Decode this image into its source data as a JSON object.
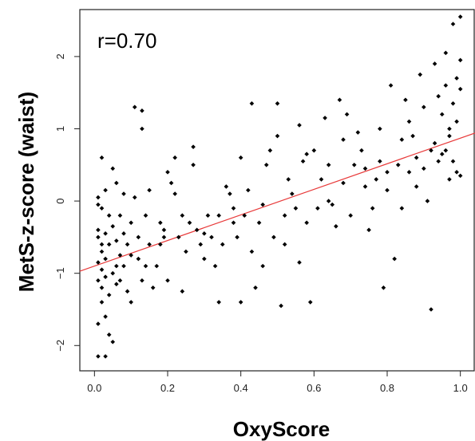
{
  "chart_data": {
    "type": "scatter",
    "title": "",
    "xlabel": "OxyScore",
    "ylabel": "MetS-z-score (waist)",
    "annotation": "r=0.70",
    "xlim": [
      -0.04,
      1.04
    ],
    "ylim": [
      -2.35,
      2.65
    ],
    "xticks": [
      {
        "value": 0.0,
        "label": "0.0"
      },
      {
        "value": 0.2,
        "label": "0.2"
      },
      {
        "value": 0.4,
        "label": "0.4"
      },
      {
        "value": 0.6,
        "label": "0.6"
      },
      {
        "value": 0.8,
        "label": "0.8"
      },
      {
        "value": 1.0,
        "label": "1.0"
      }
    ],
    "yticks": [
      {
        "value": -2,
        "label": "−2"
      },
      {
        "value": -1,
        "label": "−1"
      },
      {
        "value": 0,
        "label": "0"
      },
      {
        "value": 1,
        "label": "1"
      },
      {
        "value": 2,
        "label": "2"
      }
    ],
    "grid": false,
    "colors": {
      "points": "#000000",
      "fit_line": "#e83a3a",
      "plot_bg": "#ffffff",
      "page_bg": "#ffffff"
    },
    "fit_line": {
      "intercept": -0.9,
      "slope": 1.77,
      "x_range": [
        -0.04,
        1.04
      ]
    },
    "points": [
      [
        0.02,
        0.6
      ],
      [
        0.01,
        0.05
      ],
      [
        0.01,
        -0.05
      ],
      [
        0.03,
        0.15
      ],
      [
        0.02,
        -0.1
      ],
      [
        0.04,
        -0.2
      ],
      [
        0.01,
        -0.4
      ],
      [
        0.01,
        -0.5
      ],
      [
        0.02,
        -0.6
      ],
      [
        0.03,
        -0.45
      ],
      [
        0.02,
        -0.7
      ],
      [
        0.01,
        -0.85
      ],
      [
        0.02,
        -0.95
      ],
      [
        0.03,
        -1.05
      ],
      [
        0.01,
        -1.1
      ],
      [
        0.02,
        -1.2
      ],
      [
        0.04,
        -1.3
      ],
      [
        0.02,
        -1.4
      ],
      [
        0.03,
        -1.6
      ],
      [
        0.01,
        -1.7
      ],
      [
        0.04,
        -1.85
      ],
      [
        0.05,
        -1.95
      ],
      [
        0.01,
        -2.15
      ],
      [
        0.03,
        -2.15
      ],
      [
        0.05,
        0.45
      ],
      [
        0.06,
        0.25
      ],
      [
        0.05,
        -0.35
      ],
      [
        0.06,
        -0.55
      ],
      [
        0.07,
        -0.75
      ],
      [
        0.05,
        -1.0
      ],
      [
        0.06,
        -1.15
      ],
      [
        0.07,
        -0.2
      ],
      [
        0.08,
        0.1
      ],
      [
        0.09,
        -0.6
      ],
      [
        0.08,
        -0.9
      ],
      [
        0.09,
        -1.25
      ],
      [
        0.1,
        -1.4
      ],
      [
        0.1,
        -0.3
      ],
      [
        0.11,
        0.05
      ],
      [
        0.11,
        1.3
      ],
      [
        0.13,
        1.25
      ],
      [
        0.13,
        1.0
      ],
      [
        0.12,
        -0.5
      ],
      [
        0.12,
        -0.8
      ],
      [
        0.13,
        -1.1
      ],
      [
        0.14,
        -0.2
      ],
      [
        0.15,
        -0.6
      ],
      [
        0.15,
        0.15
      ],
      [
        0.16,
        -1.2
      ],
      [
        0.17,
        -0.9
      ],
      [
        0.18,
        -0.6
      ],
      [
        0.19,
        -0.4
      ],
      [
        0.19,
        -0.5
      ],
      [
        0.2,
        -1.1
      ],
      [
        0.2,
        0.4
      ],
      [
        0.21,
        0.25
      ],
      [
        0.22,
        0.6
      ],
      [
        0.22,
        0.1
      ],
      [
        0.23,
        -0.5
      ],
      [
        0.24,
        -1.25
      ],
      [
        0.25,
        -0.7
      ],
      [
        0.26,
        -0.3
      ],
      [
        0.27,
        0.75
      ],
      [
        0.27,
        0.5
      ],
      [
        0.28,
        -0.4
      ],
      [
        0.29,
        -0.6
      ],
      [
        0.3,
        -0.8
      ],
      [
        0.31,
        -0.2
      ],
      [
        0.32,
        -0.5
      ],
      [
        0.33,
        -0.9
      ],
      [
        0.34,
        -1.4
      ],
      [
        0.35,
        -0.6
      ],
      [
        0.36,
        0.2
      ],
      [
        0.37,
        0.1
      ],
      [
        0.38,
        -0.3
      ],
      [
        0.39,
        -0.5
      ],
      [
        0.4,
        0.6
      ],
      [
        0.4,
        -1.4
      ],
      [
        0.41,
        -0.2
      ],
      [
        0.42,
        0.15
      ],
      [
        0.43,
        1.35
      ],
      [
        0.43,
        -0.7
      ],
      [
        0.44,
        -1.2
      ],
      [
        0.45,
        -0.3
      ],
      [
        0.46,
        -0.9
      ],
      [
        0.47,
        0.5
      ],
      [
        0.48,
        0.7
      ],
      [
        0.49,
        -0.5
      ],
      [
        0.5,
        1.35
      ],
      [
        0.5,
        0.9
      ],
      [
        0.51,
        -1.45
      ],
      [
        0.52,
        -0.2
      ],
      [
        0.53,
        0.3
      ],
      [
        0.54,
        0.1
      ],
      [
        0.55,
        -0.1
      ],
      [
        0.56,
        1.05
      ],
      [
        0.56,
        -0.85
      ],
      [
        0.57,
        0.55
      ],
      [
        0.58,
        0.65
      ],
      [
        0.59,
        -1.4
      ],
      [
        0.6,
        0.7
      ],
      [
        0.61,
        -0.1
      ],
      [
        0.62,
        0.3
      ],
      [
        0.63,
        1.15
      ],
      [
        0.64,
        0.5
      ],
      [
        0.65,
        -0.05
      ],
      [
        0.66,
        -0.35
      ],
      [
        0.67,
        1.4
      ],
      [
        0.68,
        0.85
      ],
      [
        0.69,
        1.2
      ],
      [
        0.7,
        -0.2
      ],
      [
        0.71,
        0.5
      ],
      [
        0.72,
        0.95
      ],
      [
        0.73,
        0.7
      ],
      [
        0.74,
        0.2
      ],
      [
        0.75,
        -0.4
      ],
      [
        0.76,
        -0.1
      ],
      [
        0.77,
        0.3
      ],
      [
        0.78,
        0.55
      ],
      [
        0.78,
        1.0
      ],
      [
        0.79,
        -1.2
      ],
      [
        0.8,
        0.15
      ],
      [
        0.81,
        1.6
      ],
      [
        0.82,
        -0.8
      ],
      [
        0.83,
        0.5
      ],
      [
        0.84,
        0.85
      ],
      [
        0.85,
        1.4
      ],
      [
        0.86,
        1.1
      ],
      [
        0.87,
        0.9
      ],
      [
        0.88,
        0.6
      ],
      [
        0.89,
        1.75
      ],
      [
        0.9,
        0.45
      ],
      [
        0.9,
        1.3
      ],
      [
        0.91,
        0.0
      ],
      [
        0.92,
        -1.5
      ],
      [
        0.93,
        1.9
      ],
      [
        0.93,
        0.8
      ],
      [
        0.94,
        1.45
      ],
      [
        0.95,
        1.2
      ],
      [
        0.95,
        0.65
      ],
      [
        0.96,
        1.6
      ],
      [
        0.96,
        2.05
      ],
      [
        0.97,
        0.9
      ],
      [
        0.97,
        1.0
      ],
      [
        0.98,
        1.35
      ],
      [
        0.98,
        0.55
      ],
      [
        0.98,
        2.45
      ],
      [
        0.99,
        1.7
      ],
      [
        0.99,
        0.4
      ],
      [
        1.0,
        2.55
      ],
      [
        1.0,
        1.95
      ],
      [
        1.0,
        0.35
      ],
      [
        0.99,
        1.1
      ],
      [
        0.97,
        0.3
      ],
      [
        0.96,
        0.7
      ],
      [
        1.0,
        1.55
      ],
      [
        0.94,
        0.55
      ],
      [
        0.88,
        0.2
      ],
      [
        0.86,
        0.4
      ],
      [
        0.92,
        0.7
      ],
      [
        0.84,
        -0.1
      ],
      [
        0.8,
        0.4
      ],
      [
        0.74,
        0.45
      ],
      [
        0.68,
        0.25
      ],
      [
        0.64,
        0.0
      ],
      [
        0.58,
        -0.3
      ],
      [
        0.52,
        -0.6
      ],
      [
        0.46,
        -0.05
      ],
      [
        0.38,
        -0.1
      ],
      [
        0.34,
        -0.2
      ],
      [
        0.3,
        -0.45
      ],
      [
        0.24,
        -0.2
      ],
      [
        0.18,
        -0.3
      ],
      [
        0.14,
        -0.9
      ],
      [
        0.1,
        -0.75
      ],
      [
        0.08,
        -0.45
      ],
      [
        0.06,
        -0.9
      ],
      [
        0.04,
        -0.6
      ],
      [
        0.03,
        -0.8
      ],
      [
        0.07,
        -1.1
      ]
    ]
  }
}
